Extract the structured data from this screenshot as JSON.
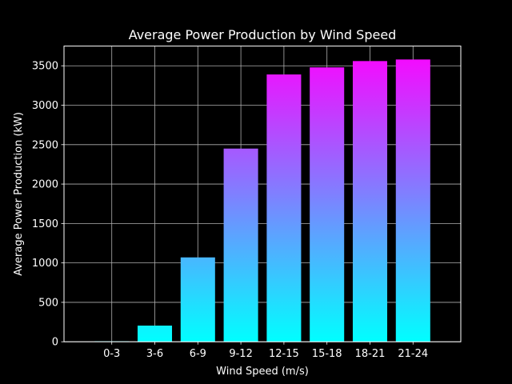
{
  "chart_data": {
    "type": "bar",
    "title": "Average Power Production by Wind Speed",
    "xlabel": "Wind Speed (m/s)",
    "ylabel": "Average Power Production (kW)",
    "categories": [
      "0-3",
      "3-6",
      "6-9",
      "9-12",
      "12-15",
      "15-18",
      "18-21",
      "21-24"
    ],
    "values": [
      5,
      205,
      1070,
      2450,
      3390,
      3480,
      3560,
      3580
    ],
    "ylim": [
      0,
      3750
    ],
    "yticks": [
      0,
      500,
      1000,
      1500,
      2000,
      2500,
      3000,
      3500
    ],
    "ytick_labels": [
      "0",
      "500",
      "1000",
      "1500",
      "2000",
      "2500",
      "3000",
      "3500"
    ],
    "grid": true,
    "legend": "none",
    "colormap": "cool",
    "colors": {
      "background": "#000000",
      "axes_face": "#000000",
      "text": "#ffffff",
      "spine": "#ffffff",
      "grid": "#b0b0b0",
      "bar_gradient_low": "#00ffff",
      "bar_gradient_high": "#ff00ff"
    }
  }
}
